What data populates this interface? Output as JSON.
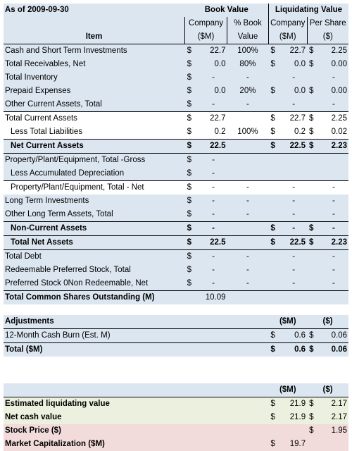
{
  "header": {
    "as_of": "As of 2009-09-30",
    "book_value": "Book Value",
    "liquidating_value": "Liquidating Value",
    "company": "Company",
    "pct_book": "% Book",
    "per_share": "Per Share",
    "item": "Item",
    "sm": "($M)",
    "value": "Value",
    "dollar": "($)"
  },
  "rows": [
    {
      "label": "Cash and Short Term Investments",
      "bv_sign": "$",
      "bv": "22.7",
      "pct": "100%",
      "lq_sign": "$",
      "lq": "22.7",
      "ps_sign": "$",
      "ps": "2.25"
    },
    {
      "label": "Total Receivables, Net",
      "bv_sign": "$",
      "bv": "0.0",
      "pct": "80%",
      "lq_sign": "$",
      "lq": "0.0",
      "ps_sign": "$",
      "ps": "0.00"
    },
    {
      "label": "Total Inventory",
      "bv_sign": "$",
      "bv": "-",
      "pct": "-",
      "lq_sign": "",
      "lq": "-",
      "ps_sign": "",
      "ps": "-"
    },
    {
      "label": "Prepaid Expenses",
      "bv_sign": "$",
      "bv": "0.0",
      "pct": "20%",
      "lq_sign": "$",
      "lq": "0.0",
      "ps_sign": "$",
      "ps": "0.00"
    },
    {
      "label": "Other Current Assets, Total",
      "bv_sign": "$",
      "bv": "-",
      "pct": "-",
      "lq_sign": "",
      "lq": "-",
      "ps_sign": "",
      "ps": "-"
    },
    {
      "label": "Total Current Assets",
      "bv_sign": "$",
      "bv": "22.7",
      "pct": "",
      "lq_sign": "$",
      "lq": "22.7",
      "ps_sign": "$",
      "ps": "2.25"
    },
    {
      "label": "Less Total Liabilities",
      "bv_sign": "$",
      "bv": "0.2",
      "pct": "100%",
      "lq_sign": "$",
      "lq": "0.2",
      "ps_sign": "$",
      "ps": "0.02"
    },
    {
      "label": "Net Current Assets",
      "bv_sign": "$",
      "bv": "22.5",
      "pct": "",
      "lq_sign": "$",
      "lq": "22.5",
      "ps_sign": "$",
      "ps": "2.23"
    },
    {
      "label": "Property/Plant/Equipment, Total -Gross",
      "bv_sign": "$",
      "bv": "-",
      "pct": "",
      "lq_sign": "",
      "lq": "",
      "ps_sign": "",
      "ps": ""
    },
    {
      "label": "Less Accumulated Depreciation",
      "bv_sign": "$",
      "bv": "-",
      "pct": "",
      "lq_sign": "",
      "lq": "",
      "ps_sign": "",
      "ps": ""
    },
    {
      "label": "Property/Plant/Equipment, Total - Net",
      "bv_sign": "$",
      "bv": "-",
      "pct": "-",
      "lq_sign": "",
      "lq": "-",
      "ps_sign": "",
      "ps": "-"
    },
    {
      "label": "Long Term Investments",
      "bv_sign": "$",
      "bv": "-",
      "pct": "-",
      "lq_sign": "",
      "lq": "-",
      "ps_sign": "",
      "ps": "-"
    },
    {
      "label": "Other Long Term Assets, Total",
      "bv_sign": "$",
      "bv": "-",
      "pct": "-",
      "lq_sign": "",
      "lq": "-",
      "ps_sign": "",
      "ps": "-"
    },
    {
      "label": "Non-Current Assets",
      "bv_sign": "$",
      "bv": "-",
      "pct": "",
      "lq_sign": "$",
      "lq": "-",
      "ps_sign": "$",
      "ps": "-"
    },
    {
      "label": "Total Net Assets",
      "bv_sign": "$",
      "bv": "22.5",
      "pct": "",
      "lq_sign": "$",
      "lq": "22.5",
      "ps_sign": "$",
      "ps": "2.23"
    },
    {
      "label": "Total Debt",
      "bv_sign": "$",
      "bv": "-",
      "pct": "-",
      "lq_sign": "",
      "lq": "-",
      "ps_sign": "",
      "ps": "-"
    },
    {
      "label": "Redeemable Preferred Stock, Total",
      "bv_sign": "$",
      "bv": "-",
      "pct": "-",
      "lq_sign": "",
      "lq": "-",
      "ps_sign": "",
      "ps": "-"
    },
    {
      "label": "Preferred Stock 0Non Redeemable, Net",
      "bv_sign": "$",
      "bv": "-",
      "pct": "-",
      "lq_sign": "",
      "lq": "-",
      "ps_sign": "",
      "ps": "-"
    }
  ],
  "shares": {
    "label": "Total Common Shares Outstanding (M)",
    "value": "10.09"
  },
  "adjustments": {
    "title": "Adjustments",
    "col_sm": "($M)",
    "col_dollar": "($)",
    "rows": [
      {
        "label": "12-Month Cash Burn (Est. M)",
        "sm_sign": "$",
        "sm": "0.6",
        "d_sign": "$",
        "d": "0.06"
      },
      {
        "label": "Total ($M)",
        "sm_sign": "$",
        "sm": "0.6",
        "d_sign": "$",
        "d": "0.06"
      }
    ]
  },
  "summary": {
    "col_sm": "($M)",
    "col_dollar": "($)",
    "rows": [
      {
        "label": "Estimated liquidating value",
        "sm_sign": "$",
        "sm": "21.9",
        "d_sign": "$",
        "d": "2.17"
      },
      {
        "label": "Net cash value",
        "sm_sign": "$",
        "sm": "21.9",
        "d_sign": "$",
        "d": "2.17"
      },
      {
        "label": "Stock Price ($)",
        "sm_sign": "",
        "sm": "",
        "d_sign": "$",
        "d": "1.95"
      },
      {
        "label": "Market Capitalization ($M)",
        "sm_sign": "$",
        "sm": "19.7",
        "d_sign": "",
        "d": ""
      }
    ]
  },
  "colors": {
    "header_blue": "#dce6f1",
    "green": "#ebf1de",
    "pink": "#f2dcdb"
  }
}
